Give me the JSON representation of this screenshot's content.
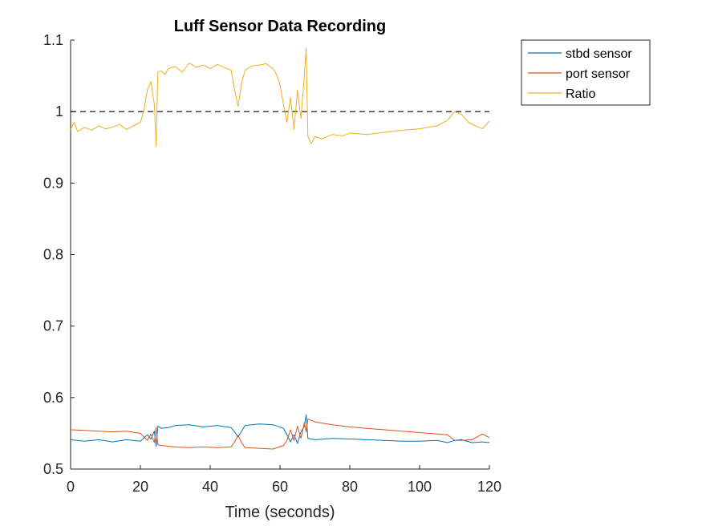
{
  "chart_data": {
    "type": "line",
    "title": "Luff Sensor Data Recording",
    "xlabel": "Time (seconds)",
    "ylabel": "",
    "xlim": [
      0,
      120
    ],
    "ylim": [
      0.5,
      1.1
    ],
    "x_ticks": [
      0,
      20,
      40,
      60,
      80,
      100,
      120
    ],
    "y_ticks": [
      0.5,
      0.6,
      0.7,
      0.8,
      0.9,
      1,
      1.1
    ],
    "x_tick_labels": [
      "0",
      "20",
      "40",
      "60",
      "80",
      "100",
      "120"
    ],
    "y_tick_labels": [
      "0.5",
      "0.6",
      "0.7",
      "0.8",
      "0.9",
      "1",
      "1.1"
    ],
    "grid": false,
    "legend_position": "outside-top-right",
    "reference_line": {
      "y": 1,
      "style": "dashed",
      "color": "#000000"
    },
    "series": [
      {
        "name": "stbd sensor",
        "color": "#0072BD",
        "x": [
          0,
          4,
          8,
          12,
          16,
          20,
          22,
          23,
          24,
          24.5,
          25,
          26,
          28,
          30,
          34,
          38,
          42,
          46,
          47,
          48,
          49,
          50,
          54,
          58,
          61,
          62,
          63,
          64,
          65,
          66,
          67,
          67.5,
          68,
          70,
          75,
          80,
          85,
          90,
          95,
          100,
          105,
          108,
          110,
          112,
          115,
          118,
          120
        ],
        "y": [
          0.541,
          0.539,
          0.541,
          0.538,
          0.541,
          0.539,
          0.548,
          0.542,
          0.553,
          0.532,
          0.56,
          0.557,
          0.558,
          0.561,
          0.562,
          0.559,
          0.561,
          0.558,
          0.552,
          0.545,
          0.553,
          0.561,
          0.563,
          0.562,
          0.557,
          0.548,
          0.538,
          0.548,
          0.536,
          0.552,
          0.56,
          0.576,
          0.543,
          0.541,
          0.543,
          0.542,
          0.541,
          0.54,
          0.539,
          0.539,
          0.54,
          0.537,
          0.54,
          0.541,
          0.537,
          0.538,
          0.537
        ]
      },
      {
        "name": "port sensor",
        "color": "#D95319",
        "x": [
          0,
          4,
          8,
          12,
          16,
          20,
          22,
          23,
          24,
          24.5,
          25,
          26,
          28,
          30,
          34,
          38,
          42,
          46,
          47,
          48,
          49,
          50,
          54,
          58,
          61,
          62,
          63,
          64,
          65,
          66,
          67,
          67.5,
          68,
          70,
          75,
          80,
          85,
          90,
          95,
          100,
          105,
          108,
          110,
          112,
          115,
          118,
          120
        ],
        "y": [
          0.555,
          0.554,
          0.553,
          0.552,
          0.553,
          0.55,
          0.54,
          0.549,
          0.537,
          0.558,
          0.534,
          0.533,
          0.532,
          0.531,
          0.53,
          0.531,
          0.53,
          0.531,
          0.538,
          0.547,
          0.537,
          0.53,
          0.529,
          0.528,
          0.533,
          0.54,
          0.555,
          0.54,
          0.56,
          0.543,
          0.565,
          0.552,
          0.57,
          0.566,
          0.562,
          0.559,
          0.557,
          0.555,
          0.553,
          0.551,
          0.549,
          0.548,
          0.54,
          0.54,
          0.541,
          0.549,
          0.544
        ]
      },
      {
        "name": "Ratio",
        "color": "#EDB120",
        "x": [
          0,
          1,
          2,
          4,
          6,
          8,
          10,
          12,
          14,
          16,
          18,
          20,
          21,
          22,
          23,
          24,
          24.5,
          25,
          26,
          27,
          28,
          30,
          32,
          34,
          36,
          38,
          40,
          42,
          44,
          46,
          47,
          48,
          49,
          50,
          52,
          54,
          56,
          58,
          59,
          60,
          61,
          62,
          63,
          64,
          65,
          66,
          67,
          67.5,
          68,
          69,
          70,
          72,
          75,
          78,
          80,
          85,
          90,
          95,
          100,
          105,
          108,
          110,
          112,
          114,
          116,
          118,
          120
        ],
        "y": [
          0.975,
          0.985,
          0.972,
          0.978,
          0.974,
          0.98,
          0.976,
          0.978,
          0.982,
          0.975,
          0.98,
          0.985,
          1.001,
          1.03,
          1.042,
          1.01,
          0.952,
          1.055,
          1.057,
          1.052,
          1.06,
          1.063,
          1.055,
          1.068,
          1.062,
          1.065,
          1.06,
          1.066,
          1.062,
          1.058,
          1.03,
          1.007,
          1.04,
          1.058,
          1.064,
          1.065,
          1.067,
          1.06,
          1.052,
          1.038,
          1.01,
          0.985,
          1.02,
          0.975,
          1.03,
          0.99,
          1.05,
          1.089,
          0.965,
          0.955,
          0.965,
          0.962,
          0.968,
          0.966,
          0.97,
          0.968,
          0.971,
          0.974,
          0.976,
          0.98,
          0.988,
          1.0,
          0.996,
          0.985,
          0.98,
          0.976,
          0.987
        ]
      }
    ]
  }
}
